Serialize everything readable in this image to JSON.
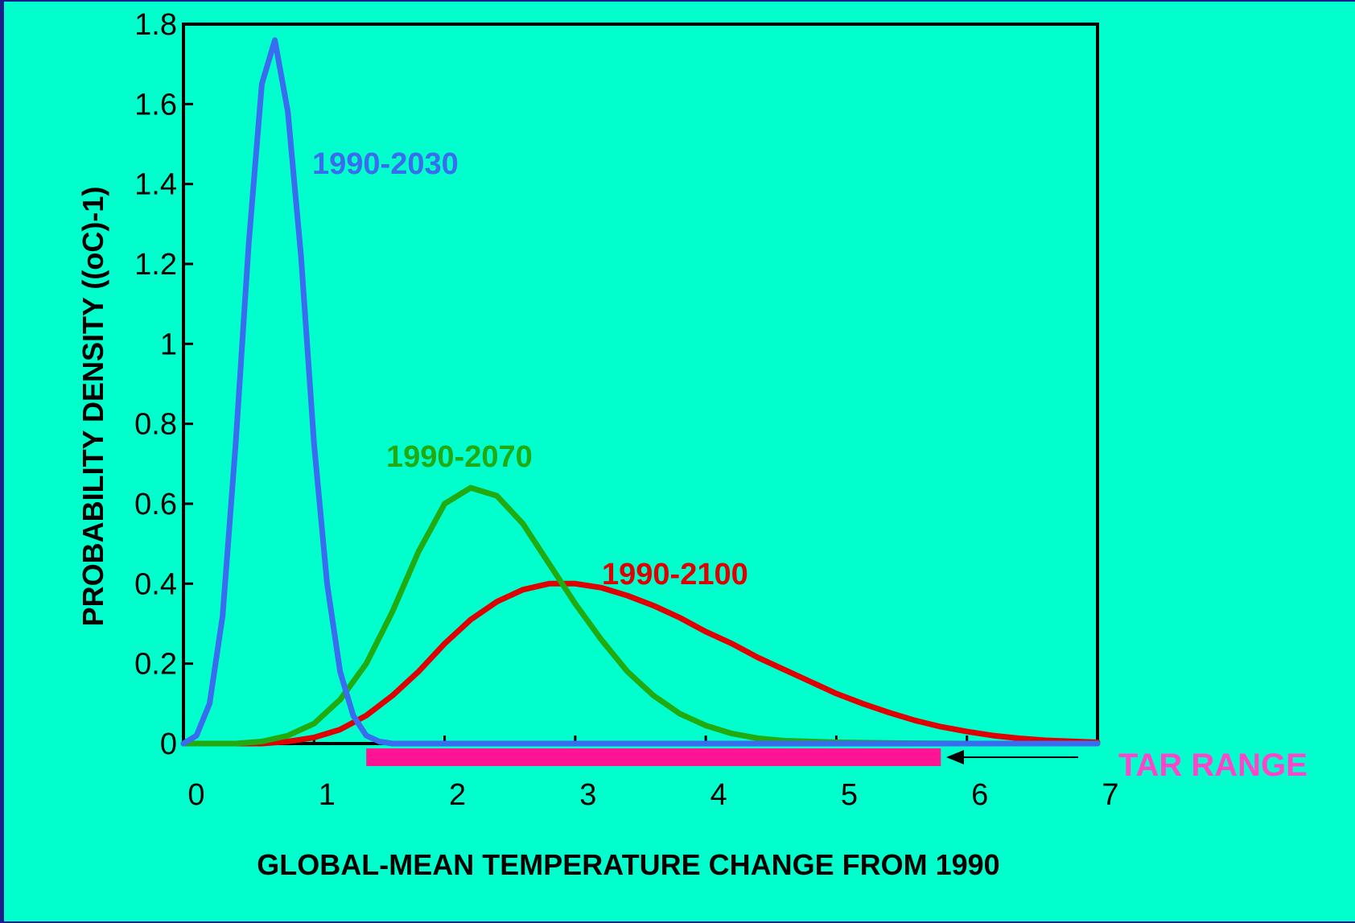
{
  "chart_data": {
    "type": "line",
    "xlabel": "GLOBAL-MEAN TEMPERATURE CHANGE FROM 1990",
    "ylabel": "PROBABILITY DENSITY ((oC)-1)",
    "xlim": [
      0,
      7
    ],
    "ylim": [
      0,
      1.8
    ],
    "x_ticks": [
      "0",
      "1",
      "2",
      "3",
      "4",
      "5",
      "6",
      "7"
    ],
    "y_ticks": [
      "0",
      "0.2",
      "0.4",
      "0.6",
      "0.8",
      "1",
      "1.2",
      "1.4",
      "1.6",
      "1.8"
    ],
    "grid": false,
    "series": [
      {
        "name": "1990-2030",
        "color": "#3a6cf0",
        "points": [
          [
            0,
            0
          ],
          [
            0.1,
            0.02
          ],
          [
            0.2,
            0.1
          ],
          [
            0.3,
            0.32
          ],
          [
            0.4,
            0.75
          ],
          [
            0.5,
            1.25
          ],
          [
            0.6,
            1.65
          ],
          [
            0.7,
            1.76
          ],
          [
            0.8,
            1.58
          ],
          [
            0.9,
            1.22
          ],
          [
            1.0,
            0.75
          ],
          [
            1.1,
            0.4
          ],
          [
            1.2,
            0.18
          ],
          [
            1.3,
            0.07
          ],
          [
            1.4,
            0.02
          ],
          [
            1.5,
            0.005
          ],
          [
            1.6,
            0.0
          ],
          [
            2.0,
            0
          ],
          [
            3.0,
            0
          ],
          [
            4.0,
            0
          ],
          [
            5.0,
            0
          ],
          [
            6.0,
            0
          ],
          [
            7.0,
            0
          ]
        ]
      },
      {
        "name": "1990-2070",
        "color": "#22aa11",
        "points": [
          [
            0,
            0
          ],
          [
            0.4,
            0.0
          ],
          [
            0.6,
            0.005
          ],
          [
            0.8,
            0.02
          ],
          [
            1.0,
            0.05
          ],
          [
            1.2,
            0.11
          ],
          [
            1.4,
            0.2
          ],
          [
            1.6,
            0.33
          ],
          [
            1.8,
            0.48
          ],
          [
            2.0,
            0.6
          ],
          [
            2.2,
            0.64
          ],
          [
            2.4,
            0.62
          ],
          [
            2.6,
            0.55
          ],
          [
            2.8,
            0.45
          ],
          [
            3.0,
            0.35
          ],
          [
            3.2,
            0.26
          ],
          [
            3.4,
            0.18
          ],
          [
            3.6,
            0.12
          ],
          [
            3.8,
            0.075
          ],
          [
            4.0,
            0.045
          ],
          [
            4.2,
            0.025
          ],
          [
            4.4,
            0.013
          ],
          [
            4.6,
            0.007
          ],
          [
            5.0,
            0.003
          ],
          [
            5.5,
            0.001
          ],
          [
            6.0,
            0.0
          ],
          [
            7.0,
            0.0
          ]
        ]
      },
      {
        "name": "1990-2100",
        "color": "#e00000",
        "points": [
          [
            0,
            0
          ],
          [
            0.6,
            0.0
          ],
          [
            0.8,
            0.005
          ],
          [
            1.0,
            0.015
          ],
          [
            1.2,
            0.035
          ],
          [
            1.4,
            0.07
          ],
          [
            1.6,
            0.12
          ],
          [
            1.8,
            0.18
          ],
          [
            2.0,
            0.25
          ],
          [
            2.2,
            0.31
          ],
          [
            2.4,
            0.355
          ],
          [
            2.6,
            0.385
          ],
          [
            2.8,
            0.4
          ],
          [
            3.0,
            0.4
          ],
          [
            3.2,
            0.39
          ],
          [
            3.4,
            0.37
          ],
          [
            3.6,
            0.345
          ],
          [
            3.8,
            0.315
          ],
          [
            4.0,
            0.28
          ],
          [
            4.2,
            0.25
          ],
          [
            4.4,
            0.215
          ],
          [
            4.6,
            0.185
          ],
          [
            4.8,
            0.155
          ],
          [
            5.0,
            0.125
          ],
          [
            5.2,
            0.1
          ],
          [
            5.4,
            0.078
          ],
          [
            5.6,
            0.058
          ],
          [
            5.8,
            0.042
          ],
          [
            6.0,
            0.03
          ],
          [
            6.2,
            0.02
          ],
          [
            6.4,
            0.013
          ],
          [
            6.6,
            0.008
          ],
          [
            7.0,
            0.003
          ]
        ]
      }
    ],
    "tar_range": {
      "label": "TAR RANGE",
      "from": 1.4,
      "to": 5.8,
      "color": "#ff1493",
      "label_color": "#ff44cc"
    }
  }
}
